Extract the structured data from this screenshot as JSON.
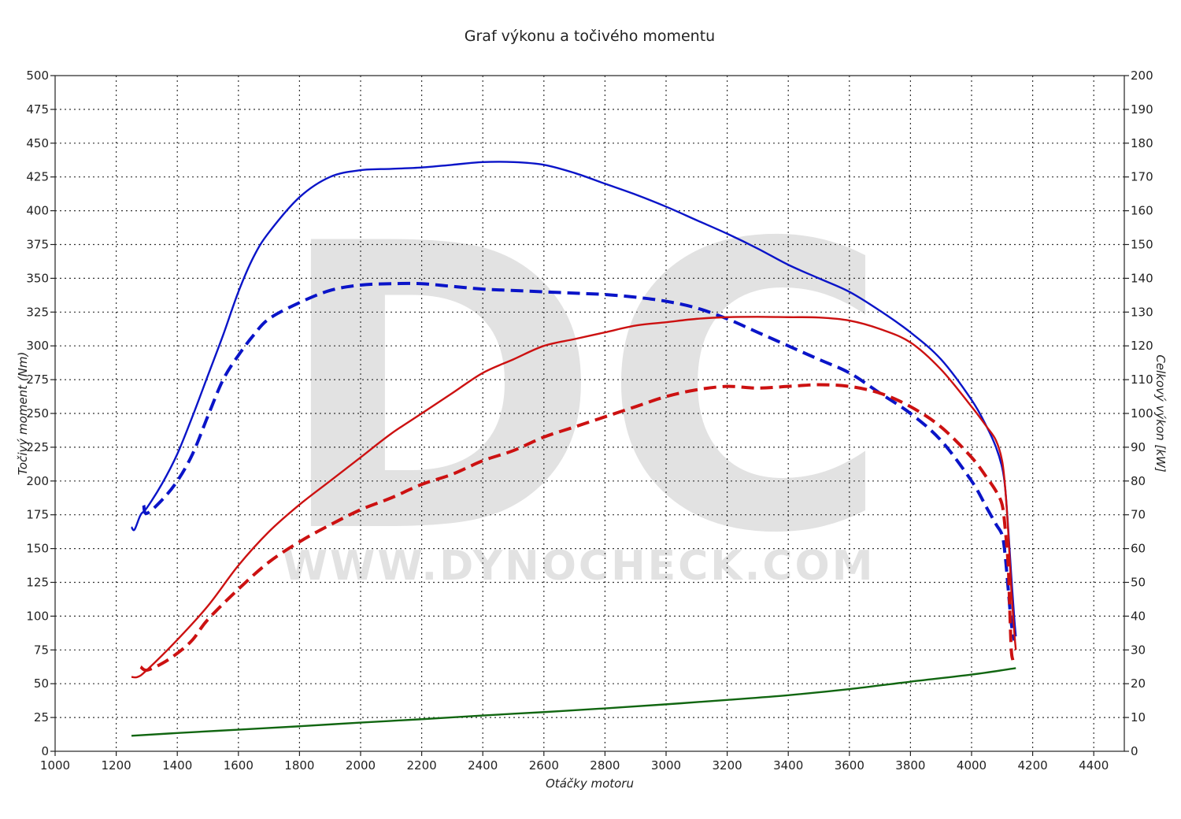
{
  "chart_data": {
    "type": "line",
    "title": "Graf výkonu a točivého momentu",
    "xlabel": "Otáčky motoru",
    "ylabel_left": "Točivý moment (Nm)",
    "ylabel_right": "Celkový výkon [kW]",
    "xlim": [
      1000,
      4500
    ],
    "ylim_left": [
      0,
      500
    ],
    "ylim_right": [
      0,
      200
    ],
    "x_ticks": [
      1000,
      1200,
      1400,
      1600,
      1800,
      2000,
      2200,
      2400,
      2600,
      2800,
      3000,
      3200,
      3400,
      3600,
      3800,
      4000,
      4200,
      4400
    ],
    "y_left_ticks": [
      0,
      25,
      50,
      75,
      100,
      125,
      150,
      175,
      200,
      225,
      250,
      275,
      300,
      325,
      350,
      375,
      400,
      425,
      450,
      475,
      500
    ],
    "y_right_ticks": [
      0,
      10,
      20,
      30,
      40,
      50,
      60,
      70,
      80,
      90,
      100,
      110,
      120,
      130,
      140,
      150,
      160,
      170,
      180,
      190,
      200
    ],
    "grid": true,
    "watermark": {
      "letters": "DC",
      "url": "WWW.DYNOCHECK.COM"
    },
    "series": [
      {
        "id": "torque-tuned",
        "axis": "left",
        "color": "#0a14c8",
        "style": "solid",
        "points": [
          [
            1250,
            166
          ],
          [
            1260,
            164
          ],
          [
            1280,
            175
          ],
          [
            1300,
            180
          ],
          [
            1350,
            198
          ],
          [
            1400,
            220
          ],
          [
            1450,
            248
          ],
          [
            1500,
            278
          ],
          [
            1550,
            308
          ],
          [
            1600,
            340
          ],
          [
            1650,
            366
          ],
          [
            1700,
            384
          ],
          [
            1800,
            410
          ],
          [
            1900,
            425
          ],
          [
            2000,
            430
          ],
          [
            2100,
            431
          ],
          [
            2200,
            432
          ],
          [
            2300,
            434
          ],
          [
            2400,
            436
          ],
          [
            2500,
            436
          ],
          [
            2600,
            434
          ],
          [
            2700,
            428
          ],
          [
            2800,
            420
          ],
          [
            2900,
            412
          ],
          [
            3000,
            403
          ],
          [
            3100,
            393
          ],
          [
            3200,
            383
          ],
          [
            3300,
            372
          ],
          [
            3400,
            360
          ],
          [
            3500,
            350
          ],
          [
            3600,
            340
          ],
          [
            3700,
            326
          ],
          [
            3800,
            310
          ],
          [
            3900,
            290
          ],
          [
            4000,
            260
          ],
          [
            4050,
            240
          ],
          [
            4080,
            225
          ],
          [
            4100,
            210
          ],
          [
            4110,
            195
          ],
          [
            4120,
            165
          ],
          [
            4130,
            130
          ],
          [
            4140,
            98
          ],
          [
            4145,
            85
          ]
        ]
      },
      {
        "id": "torque-stock",
        "axis": "left",
        "color": "#0a14c8",
        "style": "dashed",
        "points": [
          [
            1290,
            182
          ],
          [
            1300,
            176
          ],
          [
            1350,
            186
          ],
          [
            1400,
            200
          ],
          [
            1450,
            220
          ],
          [
            1500,
            248
          ],
          [
            1550,
            275
          ],
          [
            1600,
            293
          ],
          [
            1650,
            308
          ],
          [
            1700,
            320
          ],
          [
            1800,
            332
          ],
          [
            1900,
            341
          ],
          [
            2000,
            345
          ],
          [
            2100,
            346
          ],
          [
            2200,
            346
          ],
          [
            2300,
            344
          ],
          [
            2400,
            342
          ],
          [
            2500,
            341
          ],
          [
            2600,
            340
          ],
          [
            2700,
            339
          ],
          [
            2800,
            338
          ],
          [
            2900,
            336
          ],
          [
            3000,
            333
          ],
          [
            3100,
            328
          ],
          [
            3200,
            320
          ],
          [
            3300,
            310
          ],
          [
            3400,
            300
          ],
          [
            3500,
            290
          ],
          [
            3600,
            280
          ],
          [
            3700,
            265
          ],
          [
            3800,
            250
          ],
          [
            3900,
            230
          ],
          [
            4000,
            200
          ],
          [
            4050,
            180
          ],
          [
            4080,
            168
          ],
          [
            4100,
            160
          ],
          [
            4110,
            145
          ],
          [
            4120,
            120
          ],
          [
            4130,
            95
          ],
          [
            4140,
            82
          ]
        ]
      },
      {
        "id": "power-tuned",
        "axis": "right",
        "color": "#cc1111",
        "style": "solid",
        "points": [
          [
            1250,
            22
          ],
          [
            1270,
            22
          ],
          [
            1300,
            24
          ],
          [
            1400,
            33
          ],
          [
            1500,
            43
          ],
          [
            1600,
            55
          ],
          [
            1700,
            65
          ],
          [
            1800,
            73
          ],
          [
            1900,
            80
          ],
          [
            2000,
            87
          ],
          [
            2100,
            94
          ],
          [
            2200,
            100
          ],
          [
            2300,
            106
          ],
          [
            2400,
            112
          ],
          [
            2500,
            116
          ],
          [
            2600,
            120
          ],
          [
            2700,
            122
          ],
          [
            2800,
            124
          ],
          [
            2900,
            126
          ],
          [
            3000,
            127
          ],
          [
            3100,
            128
          ],
          [
            3200,
            128.5
          ],
          [
            3300,
            128.6
          ],
          [
            3400,
            128.5
          ],
          [
            3500,
            128.4
          ],
          [
            3600,
            127.5
          ],
          [
            3700,
            125
          ],
          [
            3800,
            121
          ],
          [
            3900,
            113
          ],
          [
            4000,
            102
          ],
          [
            4050,
            96
          ],
          [
            4080,
            92
          ],
          [
            4100,
            86
          ],
          [
            4110,
            78
          ],
          [
            4120,
            65
          ],
          [
            4130,
            48
          ],
          [
            4140,
            35
          ],
          [
            4145,
            30
          ]
        ]
      },
      {
        "id": "power-stock",
        "axis": "right",
        "color": "#cc1111",
        "style": "dashed",
        "points": [
          [
            1280,
            25
          ],
          [
            1300,
            24
          ],
          [
            1350,
            26
          ],
          [
            1400,
            29
          ],
          [
            1450,
            33
          ],
          [
            1500,
            39
          ],
          [
            1600,
            48
          ],
          [
            1700,
            56
          ],
          [
            1800,
            62
          ],
          [
            1900,
            67
          ],
          [
            2000,
            71.5
          ],
          [
            2100,
            75
          ],
          [
            2200,
            79
          ],
          [
            2300,
            82
          ],
          [
            2400,
            86
          ],
          [
            2500,
            89
          ],
          [
            2600,
            93
          ],
          [
            2700,
            96
          ],
          [
            2800,
            99
          ],
          [
            2900,
            102
          ],
          [
            3000,
            105
          ],
          [
            3100,
            107
          ],
          [
            3200,
            108
          ],
          [
            3300,
            107.5
          ],
          [
            3400,
            108
          ],
          [
            3500,
            108.5
          ],
          [
            3600,
            108
          ],
          [
            3700,
            106
          ],
          [
            3800,
            102
          ],
          [
            3900,
            96
          ],
          [
            4000,
            87
          ],
          [
            4050,
            81
          ],
          [
            4080,
            77
          ],
          [
            4100,
            73
          ],
          [
            4110,
            66
          ],
          [
            4120,
            55
          ],
          [
            4125,
            42
          ],
          [
            4130,
            30
          ],
          [
            4135,
            27
          ]
        ]
      },
      {
        "id": "loss-power",
        "axis": "right",
        "color": "#116611",
        "style": "solid",
        "points": [
          [
            1250,
            4.6
          ],
          [
            1400,
            5.4
          ],
          [
            1600,
            6.4
          ],
          [
            1800,
            7.4
          ],
          [
            2000,
            8.5
          ],
          [
            2200,
            9.5
          ],
          [
            2400,
            10.6
          ],
          [
            2600,
            11.6
          ],
          [
            2800,
            12.7
          ],
          [
            3000,
            13.9
          ],
          [
            3200,
            15.2
          ],
          [
            3400,
            16.6
          ],
          [
            3600,
            18.4
          ],
          [
            3800,
            20.6
          ],
          [
            4000,
            22.7
          ],
          [
            4145,
            24.6
          ]
        ]
      }
    ]
  }
}
